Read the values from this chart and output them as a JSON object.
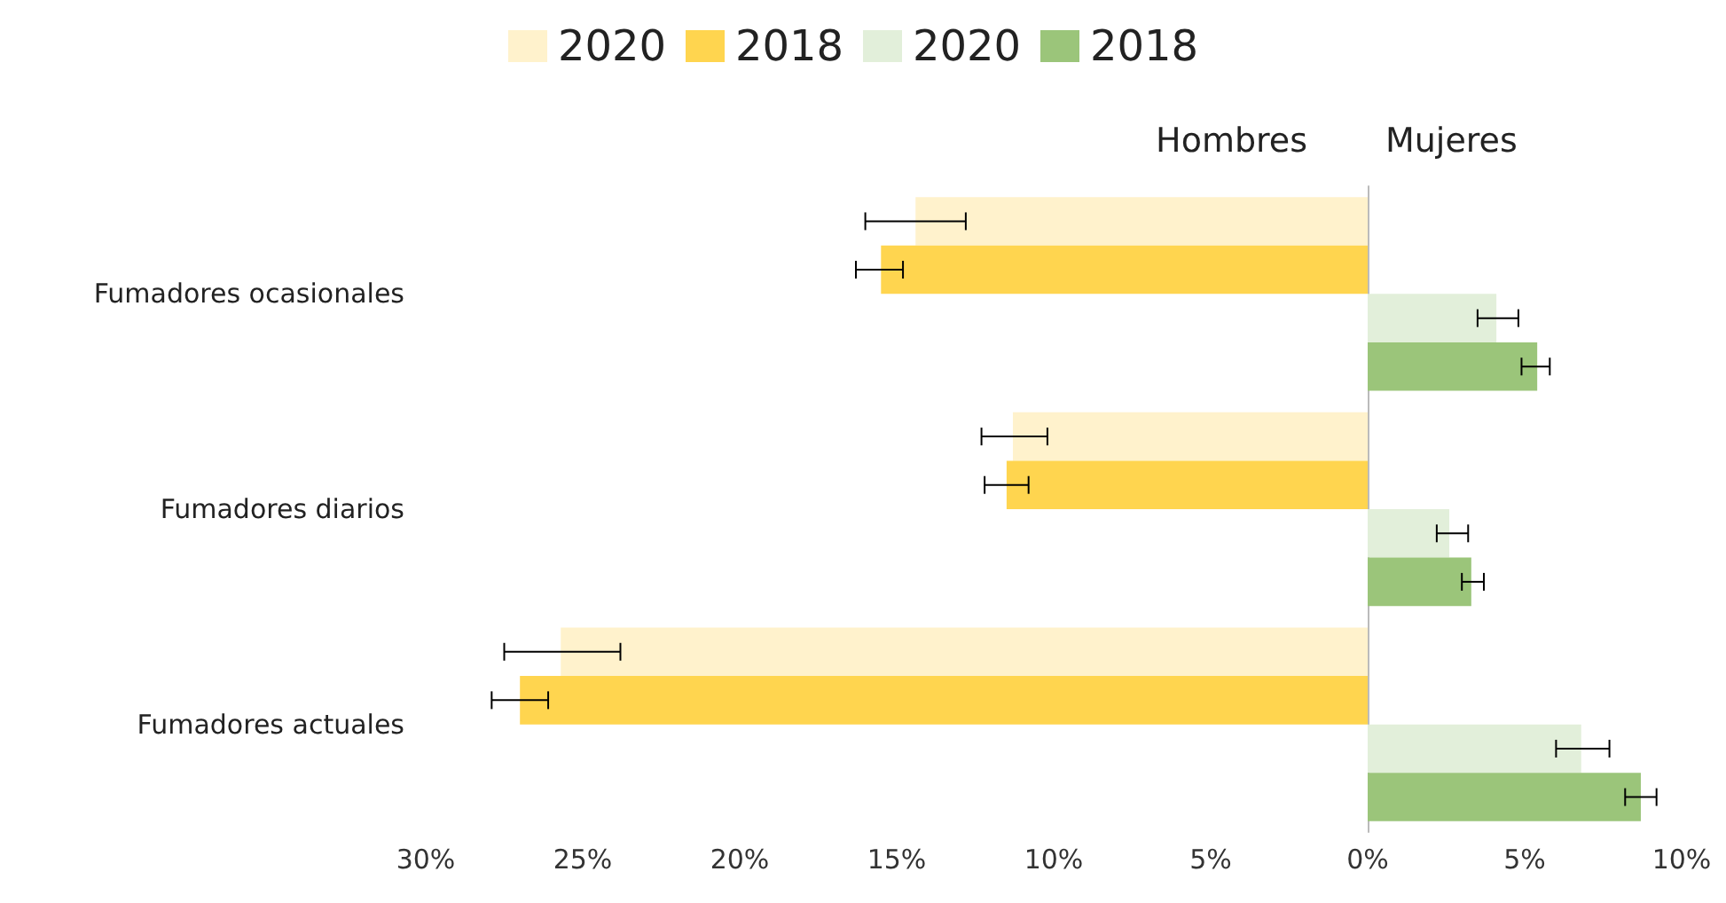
{
  "chart_data": {
    "type": "bar",
    "orientation": "horizontal",
    "categories": [
      "Fumadores ocasionales",
      "Fumadores diarios",
      "Fumadores actuales"
    ],
    "series": [
      {
        "name": "2020",
        "color": "#fff2cc",
        "values": [
          -14.4,
          -11.3,
          -25.7
        ],
        "errors": [
          [
            -16.0,
            -12.8
          ],
          [
            -12.3,
            -10.2
          ],
          [
            -27.5,
            -23.8
          ]
        ]
      },
      {
        "name": "2018",
        "color": "#ffd54f",
        "values": [
          -15.5,
          -11.5,
          -27.0
        ],
        "errors": [
          [
            -16.3,
            -14.8
          ],
          [
            -12.2,
            -10.8
          ],
          [
            -27.9,
            -26.1
          ]
        ]
      },
      {
        "name": "2020",
        "color": "#e2efda",
        "values": [
          4.1,
          2.6,
          6.8
        ],
        "errors": [
          [
            3.5,
            4.8
          ],
          [
            2.2,
            3.2
          ],
          [
            6.0,
            7.7
          ]
        ]
      },
      {
        "name": "2018",
        "color": "#9bc57a",
        "values": [
          5.4,
          3.3,
          8.7
        ],
        "errors": [
          [
            4.9,
            5.8
          ],
          [
            3.0,
            3.7
          ],
          [
            8.2,
            9.2
          ]
        ]
      }
    ],
    "xlim": [
      -30,
      10
    ],
    "xticks": [
      {
        "value": -30,
        "label": "30%"
      },
      {
        "value": -25,
        "label": "25%"
      },
      {
        "value": -20,
        "label": "20%"
      },
      {
        "value": -15,
        "label": "15%"
      },
      {
        "value": -10,
        "label": "10%"
      },
      {
        "value": -5,
        "label": "5%"
      },
      {
        "value": 0,
        "label": "0%"
      },
      {
        "value": 5,
        "label": "5%"
      },
      {
        "value": 10,
        "label": "10%"
      }
    ],
    "annotations": [
      "Hombres",
      "Mujeres"
    ],
    "legend": "top"
  }
}
